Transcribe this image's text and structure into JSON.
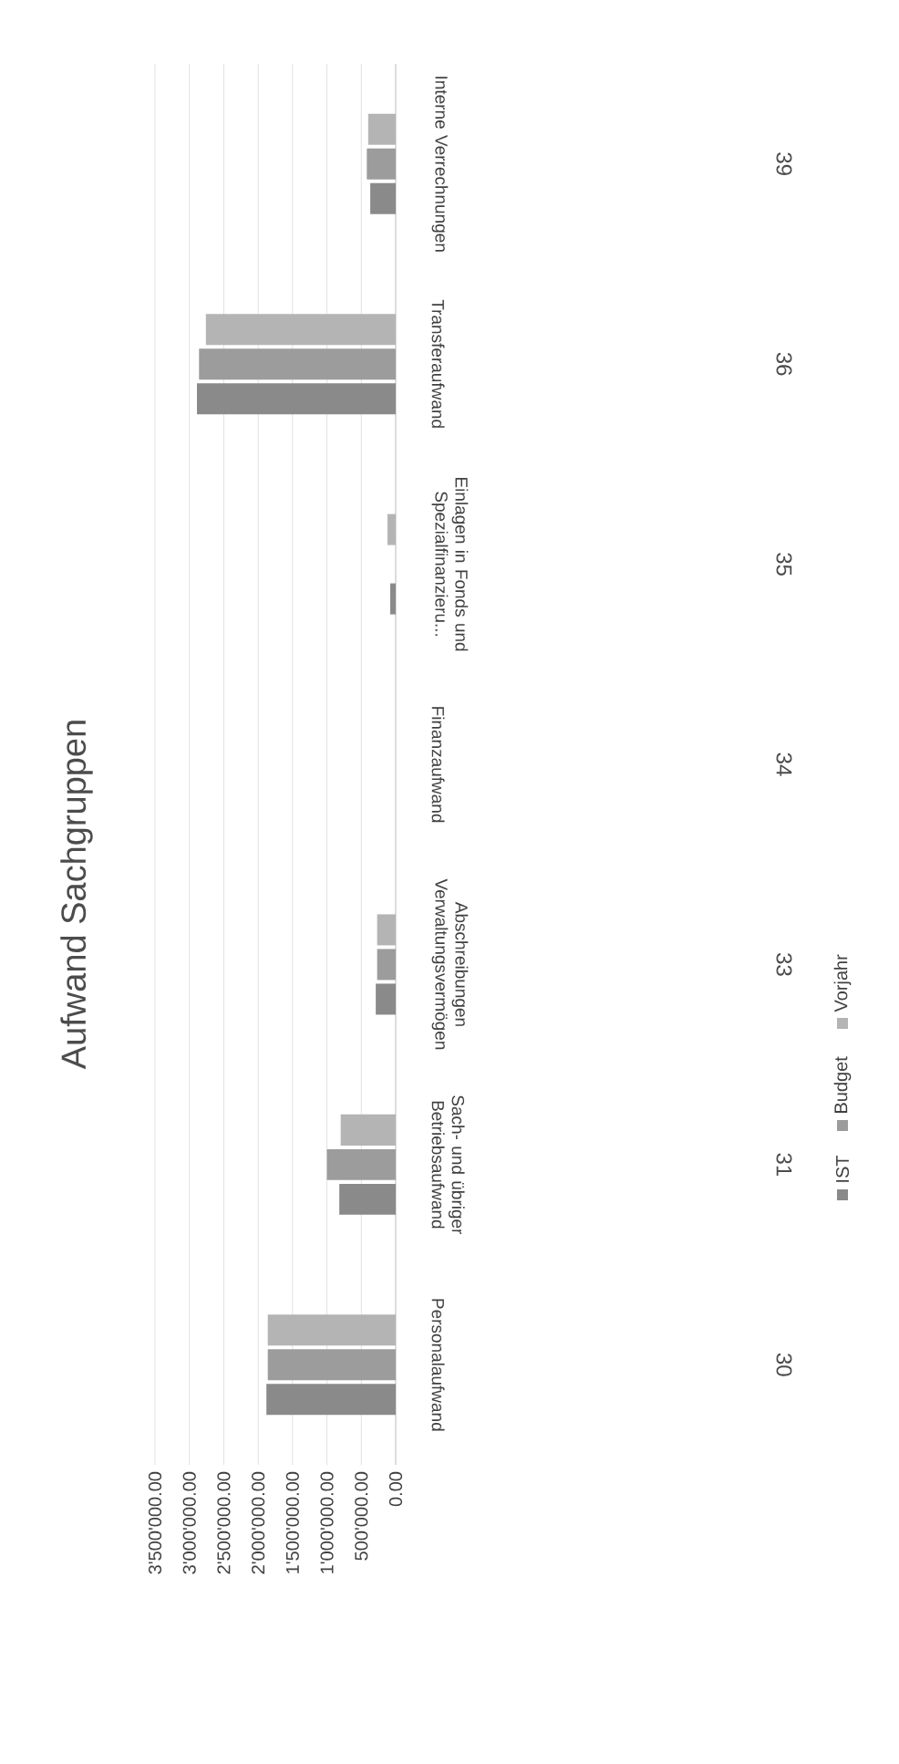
{
  "chart_data": {
    "type": "bar",
    "title": "Aufwand Sachgruppen",
    "orientation": "horizontal",
    "categories": [
      "Interne Verrechnungen",
      "Transferaufwand",
      "Einlagen in Fonds und Spezialfinanzieru...",
      "Finanzaufwand",
      "Abschreibungen Verwaltungsvermögen",
      "Sach- und übriger Betriebsaufwand",
      "Personalaufwand"
    ],
    "series": [
      {
        "name": "IST",
        "color": "#8a8a8a",
        "values": [
          370000,
          2890000,
          80000,
          0,
          290000,
          820000,
          1880000
        ]
      },
      {
        "name": "Budget",
        "color": "#9c9c9c",
        "values": [
          420000,
          2860000,
          0,
          0,
          270000,
          1000000,
          1860000
        ]
      },
      {
        "name": "Vorjahr",
        "color": "#b4b4b4",
        "values": [
          400000,
          2760000,
          120000,
          0,
          270000,
          800000,
          1860000
        ]
      }
    ],
    "xlim": [
      3500000,
      0
    ],
    "xticks": [
      {
        "value": 3500000,
        "label": "3'500'000.00"
      },
      {
        "value": 3000000,
        "label": "3'000'000.00"
      },
      {
        "value": 2500000,
        "label": "2'500'000.00"
      },
      {
        "value": 2000000,
        "label": "2'000'000.00"
      },
      {
        "value": 1500000,
        "label": "1'500'000.00"
      },
      {
        "value": 1000000,
        "label": "1'000'000.00"
      },
      {
        "value": 500000,
        "label": "500'000.00"
      },
      {
        "value": 0,
        "label": "0.00"
      }
    ],
    "annotations": [
      "39",
      "36",
      "35",
      "34",
      "33",
      "31",
      "30"
    ],
    "grid": "x",
    "legend": "bottom"
  }
}
